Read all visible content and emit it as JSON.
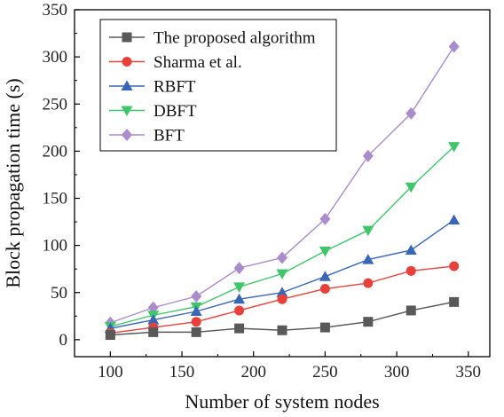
{
  "chart_data": {
    "type": "line",
    "title": "",
    "xlabel": "Number of system nodes",
    "ylabel": "Block propagation time (s)",
    "xlim": [
      75,
      365
    ],
    "ylim": [
      -18,
      350
    ],
    "xticks": [
      100,
      150,
      200,
      250,
      300,
      350
    ],
    "yticks": [
      0,
      50,
      100,
      150,
      200,
      250,
      300,
      350
    ],
    "grid": false,
    "legend_position": "top-left",
    "x": [
      100,
      130,
      160,
      190,
      220,
      250,
      280,
      310,
      340
    ],
    "series": [
      {
        "name": "The proposed algorithm",
        "color": "#595959",
        "marker": "square",
        "values": [
          5,
          8,
          8,
          12,
          10,
          13,
          19,
          31,
          40
        ]
      },
      {
        "name": "Sharma et al.",
        "color": "#e8413b",
        "marker": "circle",
        "values": [
          7,
          13,
          19,
          31,
          43,
          54,
          60,
          73,
          78
        ]
      },
      {
        "name": "RBFT",
        "color": "#3a66b8",
        "marker": "triangle-up",
        "values": [
          12,
          21,
          30,
          43,
          50,
          67,
          85,
          95,
          127
        ]
      },
      {
        "name": "DBFT",
        "color": "#3fc66a",
        "marker": "triangle-down",
        "values": [
          14,
          26,
          35,
          56,
          70,
          94,
          116,
          162,
          205
        ]
      },
      {
        "name": "BFT",
        "color": "#a98ccc",
        "marker": "diamond",
        "values": [
          18,
          34,
          46,
          76,
          87,
          128,
          195,
          240,
          311
        ]
      }
    ]
  }
}
